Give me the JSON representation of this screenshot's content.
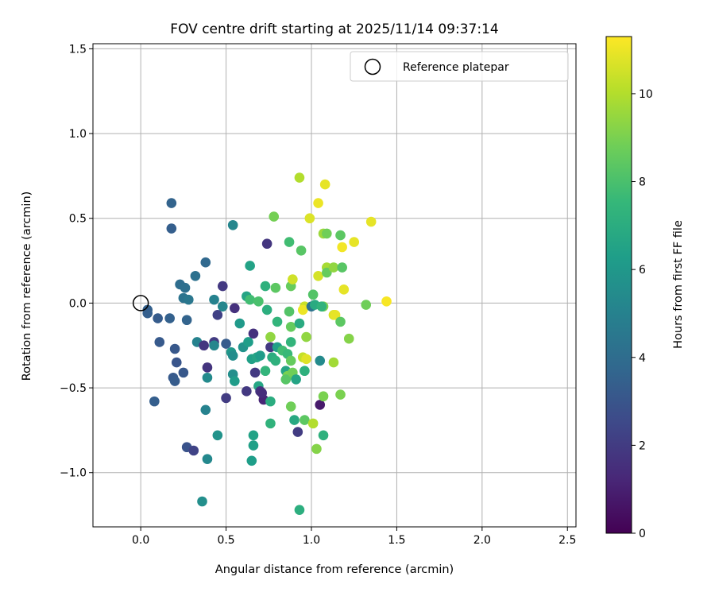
{
  "chart_data": {
    "type": "scatter",
    "title": "FOV centre drift starting at 2025/11/14 09:37:14",
    "xlabel": "Angular distance from reference (arcmin)",
    "ylabel": "Rotation from reference (arcmin)",
    "xlim": [
      -0.28,
      2.55
    ],
    "ylim": [
      -1.32,
      1.53
    ],
    "xticks": [
      0.0,
      0.5,
      1.0,
      1.5,
      2.0,
      2.5
    ],
    "xtick_labels": [
      "0.0",
      "0.5",
      "1.0",
      "1.5",
      "2.0",
      "2.5"
    ],
    "yticks": [
      -1.0,
      -0.5,
      0.0,
      0.5,
      1.0,
      1.5
    ],
    "ytick_labels": [
      "−1.0",
      "−0.5",
      "0.0",
      "0.5",
      "1.0",
      "1.5"
    ],
    "grid": true,
    "legend": {
      "position": "top-right",
      "entries": [
        {
          "label": "Reference platepar",
          "marker": "open-circle"
        }
      ]
    },
    "reference_point": {
      "x": 0.0,
      "y": 0.0
    },
    "colorbar": {
      "label": "Hours from first FF file",
      "range": [
        0,
        11.3
      ],
      "ticks": [
        0,
        2,
        4,
        6,
        8,
        10
      ],
      "tick_labels": [
        "0",
        "2",
        "4",
        "6",
        "8",
        "10"
      ],
      "colormap": "viridis",
      "colormap_stops": [
        "#440154",
        "#482878",
        "#3e4989",
        "#31688e",
        "#26828e",
        "#1f9e89",
        "#35b779",
        "#6ece58",
        "#b5de2b",
        "#fde725"
      ]
    },
    "points": [
      {
        "x": 0.18,
        "y": 0.59,
        "t": 3.6
      },
      {
        "x": 0.18,
        "y": 0.44,
        "t": 3.4
      },
      {
        "x": 0.38,
        "y": 0.24,
        "t": 3.8
      },
      {
        "x": 0.23,
        "y": 0.11,
        "t": 4.0
      },
      {
        "x": 0.32,
        "y": 0.16,
        "t": 4.2
      },
      {
        "x": 0.26,
        "y": 0.09,
        "t": 4.1
      },
      {
        "x": 0.25,
        "y": 0.03,
        "t": 4.3
      },
      {
        "x": 0.28,
        "y": 0.02,
        "t": 4.5
      },
      {
        "x": 0.43,
        "y": 0.02,
        "t": 5.0
      },
      {
        "x": 0.48,
        "y": -0.02,
        "t": 5.2
      },
      {
        "x": 0.04,
        "y": -0.04,
        "t": 3.5
      },
      {
        "x": 0.04,
        "y": -0.06,
        "t": 3.4
      },
      {
        "x": 0.1,
        "y": -0.09,
        "t": 3.3
      },
      {
        "x": 0.17,
        "y": -0.09,
        "t": 3.5
      },
      {
        "x": 0.27,
        "y": -0.1,
        "t": 3.6
      },
      {
        "x": 0.11,
        "y": -0.23,
        "t": 3.2
      },
      {
        "x": 0.2,
        "y": -0.27,
        "t": 3.1
      },
      {
        "x": 0.21,
        "y": -0.35,
        "t": 3.0
      },
      {
        "x": 0.19,
        "y": -0.44,
        "t": 3.2
      },
      {
        "x": 0.2,
        "y": -0.46,
        "t": 3.3
      },
      {
        "x": 0.25,
        "y": -0.41,
        "t": 3.1
      },
      {
        "x": 0.08,
        "y": -0.58,
        "t": 3.4
      },
      {
        "x": 0.27,
        "y": -0.85,
        "t": 2.9
      },
      {
        "x": 0.31,
        "y": -0.87,
        "t": 2.3
      },
      {
        "x": 0.33,
        "y": -0.23,
        "t": 5.0
      },
      {
        "x": 0.37,
        "y": -0.25,
        "t": 1.8
      },
      {
        "x": 0.43,
        "y": -0.23,
        "t": 2.0
      },
      {
        "x": 0.43,
        "y": -0.25,
        "t": 5.2
      },
      {
        "x": 0.39,
        "y": -0.38,
        "t": 1.7
      },
      {
        "x": 0.39,
        "y": -0.44,
        "t": 5.4
      },
      {
        "x": 0.38,
        "y": -0.63,
        "t": 5.0
      },
      {
        "x": 0.39,
        "y": -0.92,
        "t": 5.3
      },
      {
        "x": 0.45,
        "y": -0.78,
        "t": 5.8
      },
      {
        "x": 0.36,
        "y": -1.17,
        "t": 5.6
      },
      {
        "x": 0.45,
        "y": -0.07,
        "t": 2.2
      },
      {
        "x": 0.48,
        "y": 0.1,
        "t": 1.9
      },
      {
        "x": 0.55,
        "y": -0.03,
        "t": 1.6
      },
      {
        "x": 0.54,
        "y": 0.46,
        "t": 5.2
      },
      {
        "x": 0.5,
        "y": -0.24,
        "t": 3.3
      },
      {
        "x": 0.53,
        "y": -0.29,
        "t": 6.0
      },
      {
        "x": 0.54,
        "y": -0.31,
        "t": 5.5
      },
      {
        "x": 0.54,
        "y": -0.42,
        "t": 5.6
      },
      {
        "x": 0.55,
        "y": -0.46,
        "t": 6.2
      },
      {
        "x": 0.5,
        "y": -0.56,
        "t": 2.0
      },
      {
        "x": 0.58,
        "y": -0.12,
        "t": 6.1
      },
      {
        "x": 0.6,
        "y": -0.26,
        "t": 5.8
      },
      {
        "x": 0.62,
        "y": 0.04,
        "t": 6.6
      },
      {
        "x": 0.64,
        "y": 0.22,
        "t": 6.5
      },
      {
        "x": 0.64,
        "y": 0.02,
        "t": 7.8
      },
      {
        "x": 0.63,
        "y": -0.23,
        "t": 6.3
      },
      {
        "x": 0.66,
        "y": -0.18,
        "t": 1.6
      },
      {
        "x": 0.65,
        "y": -0.33,
        "t": 6.4
      },
      {
        "x": 0.67,
        "y": -0.41,
        "t": 1.9
      },
      {
        "x": 0.68,
        "y": -0.32,
        "t": 6.6
      },
      {
        "x": 0.69,
        "y": -0.49,
        "t": 6.7
      },
      {
        "x": 0.7,
        "y": -0.31,
        "t": 6.2
      },
      {
        "x": 0.7,
        "y": -0.52,
        "t": 1.7
      },
      {
        "x": 0.72,
        "y": -0.57,
        "t": 1.2
      },
      {
        "x": 0.71,
        "y": -0.53,
        "t": 1.5
      },
      {
        "x": 0.62,
        "y": -0.52,
        "t": 1.9
      },
      {
        "x": 0.66,
        "y": -0.78,
        "t": 6.5
      },
      {
        "x": 0.66,
        "y": -0.84,
        "t": 6.4
      },
      {
        "x": 0.65,
        "y": -0.93,
        "t": 6.3
      },
      {
        "x": 0.74,
        "y": 0.35,
        "t": 1.8
      },
      {
        "x": 0.73,
        "y": 0.1,
        "t": 7.2
      },
      {
        "x": 0.69,
        "y": 0.01,
        "t": 8.0
      },
      {
        "x": 0.74,
        "y": -0.04,
        "t": 7.1
      },
      {
        "x": 0.73,
        "y": -0.4,
        "t": 7.4
      },
      {
        "x": 0.76,
        "y": -0.26,
        "t": 1.9
      },
      {
        "x": 0.76,
        "y": -0.2,
        "t": 9.4
      },
      {
        "x": 0.77,
        "y": -0.32,
        "t": 7.0
      },
      {
        "x": 0.79,
        "y": -0.34,
        "t": 7.2
      },
      {
        "x": 0.76,
        "y": -0.58,
        "t": 7.0
      },
      {
        "x": 0.76,
        "y": -0.71,
        "t": 7.3
      },
      {
        "x": 0.78,
        "y": 0.51,
        "t": 8.9
      },
      {
        "x": 0.79,
        "y": 0.09,
        "t": 8.4
      },
      {
        "x": 0.8,
        "y": -0.11,
        "t": 7.4
      },
      {
        "x": 0.8,
        "y": -0.26,
        "t": 6.4
      },
      {
        "x": 0.83,
        "y": -0.28,
        "t": 7.8
      },
      {
        "x": 0.86,
        "y": -0.3,
        "t": 7.6
      },
      {
        "x": 0.85,
        "y": -0.4,
        "t": 6.6
      },
      {
        "x": 0.86,
        "y": -0.43,
        "t": 9.0
      },
      {
        "x": 0.85,
        "y": -0.45,
        "t": 8.3
      },
      {
        "x": 0.87,
        "y": 0.36,
        "t": 7.8
      },
      {
        "x": 0.88,
        "y": 0.1,
        "t": 8.6
      },
      {
        "x": 0.89,
        "y": 0.14,
        "t": 10.5
      },
      {
        "x": 0.87,
        "y": -0.05,
        "t": 8.2
      },
      {
        "x": 0.88,
        "y": -0.14,
        "t": 8.6
      },
      {
        "x": 0.88,
        "y": -0.23,
        "t": 7.4
      },
      {
        "x": 0.88,
        "y": -0.34,
        "t": 8.6
      },
      {
        "x": 0.89,
        "y": -0.41,
        "t": 8.8
      },
      {
        "x": 0.91,
        "y": -0.45,
        "t": 6.6
      },
      {
        "x": 0.88,
        "y": -0.61,
        "t": 8.8
      },
      {
        "x": 0.9,
        "y": -0.69,
        "t": 6.8
      },
      {
        "x": 0.92,
        "y": -0.76,
        "t": 2.0
      },
      {
        "x": 0.93,
        "y": 0.74,
        "t": 10.0
      },
      {
        "x": 0.94,
        "y": 0.31,
        "t": 8.3
      },
      {
        "x": 0.93,
        "y": -0.12,
        "t": 6.9
      },
      {
        "x": 0.96,
        "y": -0.02,
        "t": 10.4
      },
      {
        "x": 0.95,
        "y": -0.04,
        "t": 11.0
      },
      {
        "x": 0.97,
        "y": -0.2,
        "t": 9.4
      },
      {
        "x": 0.95,
        "y": -0.32,
        "t": 10.3
      },
      {
        "x": 0.97,
        "y": -0.33,
        "t": 10.8
      },
      {
        "x": 0.96,
        "y": -0.4,
        "t": 7.2
      },
      {
        "x": 0.96,
        "y": -0.69,
        "t": 8.4
      },
      {
        "x": 0.93,
        "y": -1.22,
        "t": 7.1
      },
      {
        "x": 0.99,
        "y": 0.5,
        "t": 10.7
      },
      {
        "x": 1.01,
        "y": 0.05,
        "t": 8.2
      },
      {
        "x": 1.0,
        "y": -0.02,
        "t": 4.3
      },
      {
        "x": 1.02,
        "y": -0.01,
        "t": 6.9
      },
      {
        "x": 1.01,
        "y": -0.71,
        "t": 10.0
      },
      {
        "x": 1.04,
        "y": 0.59,
        "t": 11.0
      },
      {
        "x": 1.04,
        "y": 0.16,
        "t": 10.6
      },
      {
        "x": 1.05,
        "y": -0.34,
        "t": 5.4
      },
      {
        "x": 1.05,
        "y": -0.6,
        "t": 0.8
      },
      {
        "x": 1.03,
        "y": -0.86,
        "t": 9.2
      },
      {
        "x": 1.08,
        "y": 0.7,
        "t": 10.9
      },
      {
        "x": 1.07,
        "y": 0.41,
        "t": 9.6
      },
      {
        "x": 1.09,
        "y": 0.41,
        "t": 8.8
      },
      {
        "x": 1.09,
        "y": 0.21,
        "t": 9.8
      },
      {
        "x": 1.09,
        "y": 0.18,
        "t": 8.6
      },
      {
        "x": 1.07,
        "y": -0.02,
        "t": 9.0
      },
      {
        "x": 1.06,
        "y": -0.02,
        "t": 7.3
      },
      {
        "x": 1.07,
        "y": -0.55,
        "t": 9.0
      },
      {
        "x": 1.07,
        "y": -0.78,
        "t": 7.2
      },
      {
        "x": 1.13,
        "y": 0.21,
        "t": 9.4
      },
      {
        "x": 1.13,
        "y": -0.07,
        "t": 10.7
      },
      {
        "x": 1.14,
        "y": -0.07,
        "t": 10.9
      },
      {
        "x": 1.13,
        "y": -0.35,
        "t": 9.7
      },
      {
        "x": 1.17,
        "y": 0.4,
        "t": 8.4
      },
      {
        "x": 1.18,
        "y": 0.33,
        "t": 11.1
      },
      {
        "x": 1.18,
        "y": 0.21,
        "t": 8.3
      },
      {
        "x": 1.17,
        "y": -0.11,
        "t": 8.4
      },
      {
        "x": 1.17,
        "y": -0.54,
        "t": 9.0
      },
      {
        "x": 1.19,
        "y": 0.08,
        "t": 10.9
      },
      {
        "x": 1.25,
        "y": 0.36,
        "t": 10.9
      },
      {
        "x": 1.22,
        "y": -0.21,
        "t": 9.2
      },
      {
        "x": 1.32,
        "y": -0.01,
        "t": 8.8
      },
      {
        "x": 1.35,
        "y": 0.48,
        "t": 10.9
      },
      {
        "x": 1.44,
        "y": 0.01,
        "t": 11.2
      }
    ]
  }
}
